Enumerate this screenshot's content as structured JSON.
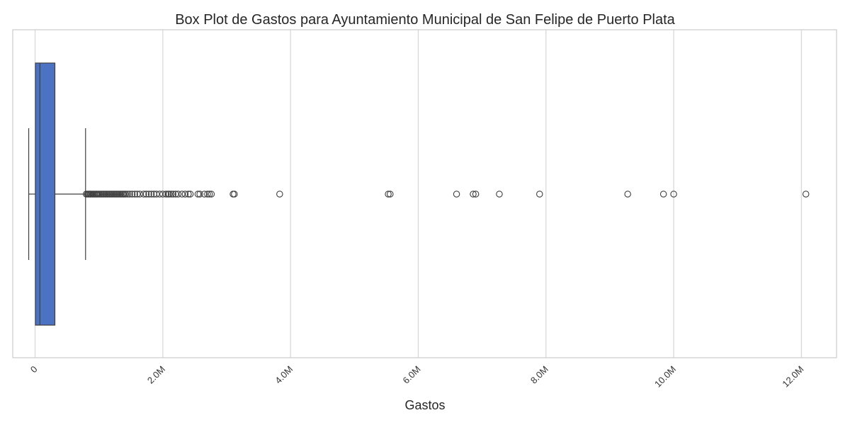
{
  "chart_data": {
    "type": "box",
    "title": "Box Plot de Gastos para Ayuntamiento Municipal de San Felipe de Puerto Plata",
    "xlabel": "Gastos",
    "ylabel": "",
    "orientation": "horizontal",
    "xlim": [
      -350000,
      12550000
    ],
    "xticks": [
      {
        "value": 0,
        "label": "0"
      },
      {
        "value": 2000000,
        "label": "2.0M"
      },
      {
        "value": 4000000,
        "label": "4.0M"
      },
      {
        "value": 6000000,
        "label": "6.0M"
      },
      {
        "value": 8000000,
        "label": "8.0M"
      },
      {
        "value": 10000000,
        "label": "10.0M"
      },
      {
        "value": 12000000,
        "label": "12.0M"
      }
    ],
    "grid": "vertical",
    "box": {
      "whisker_low": -100000,
      "q1": 5000,
      "median": 75000,
      "q3": 310000,
      "whisker_high": 790000,
      "color": "#4c72c4"
    },
    "outliers": [
      800000,
      820000,
      835000,
      850000,
      865000,
      880000,
      900000,
      915000,
      930000,
      950000,
      965000,
      980000,
      1000000,
      1020000,
      1040000,
      1060000,
      1080000,
      1100000,
      1120000,
      1140000,
      1160000,
      1180000,
      1200000,
      1220000,
      1240000,
      1260000,
      1280000,
      1300000,
      1320000,
      1340000,
      1360000,
      1380000,
      1400000,
      1420000,
      1450000,
      1480000,
      1520000,
      1560000,
      1600000,
      1640000,
      1700000,
      1740000,
      1780000,
      1820000,
      1860000,
      1900000,
      1950000,
      2000000,
      2050000,
      2080000,
      2100000,
      2130000,
      2160000,
      2200000,
      2240000,
      2300000,
      2350000,
      2400000,
      2430000,
      2550000,
      2580000,
      2650000,
      2700000,
      2730000,
      2760000,
      3100000,
      3120000,
      3830000,
      5530000,
      5560000,
      6600000,
      6860000,
      6900000,
      7270000,
      7900000,
      9280000,
      9840000,
      10000000,
      12070000
    ]
  }
}
